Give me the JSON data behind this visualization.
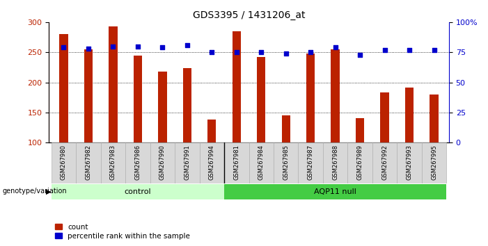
{
  "title": "GDS3395 / 1431206_at",
  "samples": [
    "GSM267980",
    "GSM267982",
    "GSM267983",
    "GSM267986",
    "GSM267990",
    "GSM267991",
    "GSM267994",
    "GSM267981",
    "GSM267984",
    "GSM267985",
    "GSM267987",
    "GSM267988",
    "GSM267989",
    "GSM267992",
    "GSM267993",
    "GSM267995"
  ],
  "counts": [
    280,
    255,
    293,
    244,
    218,
    224,
    138,
    285,
    242,
    145,
    248,
    255,
    141,
    183,
    192,
    180
  ],
  "percentiles": [
    79,
    78,
    80,
    80,
    79,
    81,
    75,
    75,
    75,
    74,
    75,
    79,
    73,
    77,
    77,
    77
  ],
  "n_control": 7,
  "bar_color": "#bb2200",
  "dot_color": "#0000cc",
  "control_color": "#ccffcc",
  "aqp_color": "#44cc44",
  "bar_bottom": 100,
  "ylim_left": [
    100,
    300
  ],
  "ylim_right": [
    0,
    100
  ],
  "yticks_left": [
    100,
    150,
    200,
    250,
    300
  ],
  "yticks_right": [
    0,
    25,
    50,
    75,
    100
  ],
  "ytick_labels_right": [
    "0",
    "25",
    "50",
    "75",
    "100%"
  ],
  "grid_vals": [
    150,
    200,
    250
  ],
  "legend_count_label": "count",
  "legend_pct_label": "percentile rank within the sample",
  "genotype_label": "genotype/variation",
  "control_label": "control",
  "aqp_label": "AQP11 null"
}
